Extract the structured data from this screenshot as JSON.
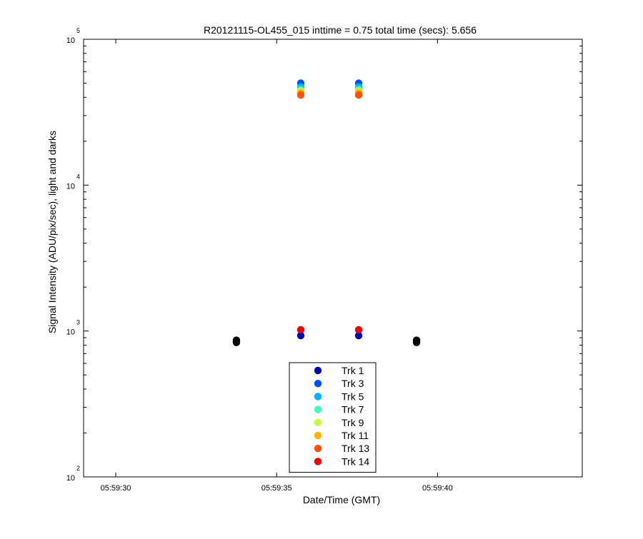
{
  "chart_data": {
    "type": "scatter",
    "title": "R20121115-OL455_015 inttime = 0.75 total time (secs): 5.656",
    "xlabel": "Date/Time (GMT)",
    "ylabel": "Signal Intensity (ADU/pix/sec), light and darks",
    "x_scale": "time",
    "y_scale": "log",
    "xlim": [
      "05:59:29",
      "05:59:44.5"
    ],
    "ylim": [
      100,
      100000
    ],
    "x_ticks": [
      {
        "value": "05:59:30",
        "label": "05:59:30"
      },
      {
        "value": "05:59:35",
        "label": "05:59:35"
      },
      {
        "value": "05:59:40",
        "label": "05:59:40"
      }
    ],
    "y_ticks": [
      {
        "value": 100,
        "base": "10",
        "exp": "2"
      },
      {
        "value": 1000,
        "base": "10",
        "exp": "3"
      },
      {
        "value": 10000,
        "base": "10",
        "exp": "4"
      },
      {
        "value": 100000,
        "base": "10",
        "exp": "5"
      }
    ],
    "grid": false,
    "legend_position": "bottom-center",
    "series": [
      {
        "name": "Trk 1",
        "color": "#0000b4",
        "points": [
          {
            "x": "05:59:35.75",
            "y": 930
          },
          {
            "x": "05:59:37.55",
            "y": 930
          }
        ]
      },
      {
        "name": "Trk 3",
        "color": "#0050ff",
        "points": [
          {
            "x": "05:59:35.75",
            "y": 50000
          },
          {
            "x": "05:59:37.55",
            "y": 50000
          }
        ]
      },
      {
        "name": "Trk 5",
        "color": "#00b4ff",
        "points": [
          {
            "x": "05:59:35.75",
            "y": 47000
          },
          {
            "x": "05:59:37.55",
            "y": 47000
          }
        ]
      },
      {
        "name": "Trk 7",
        "color": "#40ffbf",
        "points": [
          {
            "x": "05:59:35.75",
            "y": 45000
          },
          {
            "x": "05:59:37.55",
            "y": 45000
          }
        ]
      },
      {
        "name": "Trk 9",
        "color": "#bfff40",
        "points": [
          {
            "x": "05:59:35.75",
            "y": 44000
          },
          {
            "x": "05:59:37.55",
            "y": 44000
          }
        ]
      },
      {
        "name": "Trk 11",
        "color": "#ffb400",
        "points": [
          {
            "x": "05:59:35.75",
            "y": 43000
          },
          {
            "x": "05:59:37.55",
            "y": 43000
          }
        ]
      },
      {
        "name": "Trk 13",
        "color": "#ff5000",
        "points": [
          {
            "x": "05:59:35.75",
            "y": 41500
          },
          {
            "x": "05:59:37.55",
            "y": 41500
          }
        ]
      },
      {
        "name": "Trk 14",
        "color": "#f00000",
        "points": [
          {
            "x": "05:59:35.75",
            "y": 1020
          },
          {
            "x": "05:59:37.55",
            "y": 1020
          }
        ]
      }
    ],
    "dark_points": {
      "color": "#000000",
      "points": [
        {
          "x": "05:59:33.75",
          "y": 835
        },
        {
          "x": "05:59:33.75",
          "y": 850
        },
        {
          "x": "05:59:33.75",
          "y": 865
        },
        {
          "x": "05:59:39.35",
          "y": 835
        },
        {
          "x": "05:59:39.35",
          "y": 850
        },
        {
          "x": "05:59:39.35",
          "y": 865
        }
      ]
    }
  }
}
